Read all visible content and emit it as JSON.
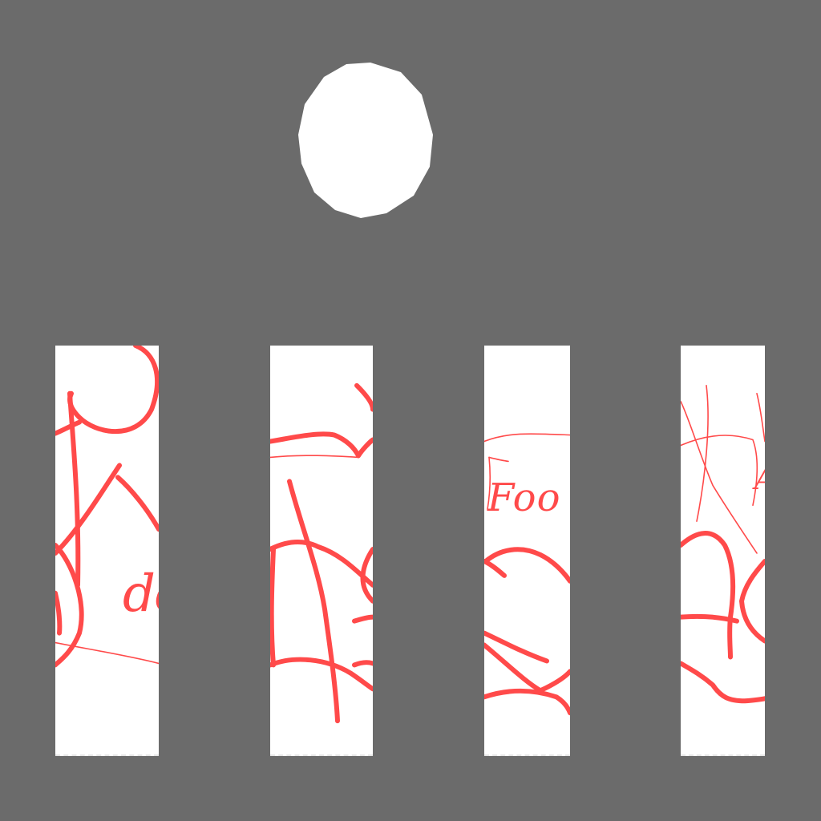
{
  "scene": {
    "background_color": "#6b6b6b",
    "ball_color": "#ffffff",
    "lane_color": "#ffffff",
    "scribble_color": "#ff4a4a"
  },
  "lanes": [
    {
      "handwriting": "do"
    },
    {
      "handwriting": ""
    },
    {
      "handwriting": "Foo"
    },
    {
      "handwriting": "A"
    }
  ]
}
